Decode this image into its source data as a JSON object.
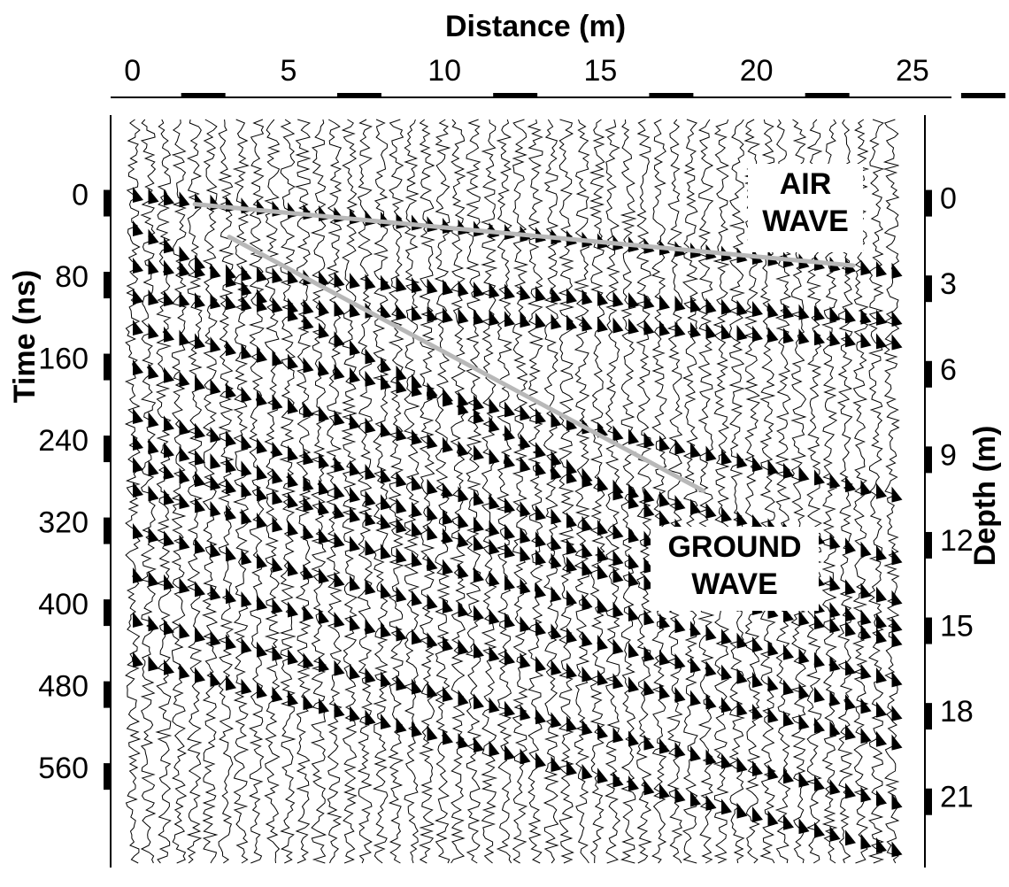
{
  "chart_data": {
    "type": "wiggle",
    "xlabel": "Distance (m)",
    "ylabel": "Time (ns)",
    "y2label": "Depth (m)",
    "xlim": [
      -0.7,
      25.4
    ],
    "xticks": [
      0,
      5,
      10,
      15,
      20,
      25
    ],
    "ylim": [
      -80,
      655
    ],
    "yticks": [
      0,
      80,
      160,
      240,
      320,
      400,
      480,
      560
    ],
    "y2lim": [
      -3,
      23.4
    ],
    "y2ticks": [
      0,
      3,
      6,
      9,
      12,
      15,
      18,
      21
    ],
    "picks": [
      {
        "label_lines": [
          "AIR",
          "WAVE"
        ],
        "color": "#b8b8b8",
        "x": [
          2,
          23.1
        ],
        "y": [
          7,
          67
        ]
      },
      {
        "label_lines": [
          "GROUND",
          "WAVE"
        ],
        "color": "#b8b8b8",
        "x": [
          3.1,
          18.3
        ],
        "y": [
          39,
          287
        ]
      }
    ]
  }
}
